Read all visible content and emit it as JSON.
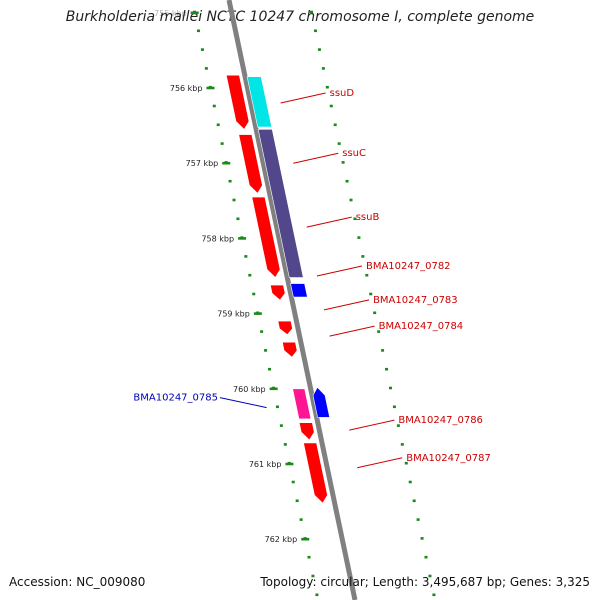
{
  "title": "Burkholderia mallei NCTC 10247 chromosome I, complete genome",
  "accession_text": "Accession: NC_009080",
  "topology_text": "Topology: circular; Length: 3,495,687 bp; Genes: 3,325",
  "colors": {
    "backbone": "#808080",
    "ticks": "#1a8a1a",
    "plus_label": "#cc0000",
    "minus_label": "#0000bb",
    "cds_red": "#ff0000",
    "cds_cyan": "#00e5e5",
    "cds_purple": "#52478a",
    "cds_blue": "#0000ff",
    "cds_pink": "#ff1493"
  },
  "scale_ticks": [
    "755 kbp",
    "756 kbp",
    "757 kbp",
    "758 kbp",
    "759 kbp",
    "760 kbp",
    "761 kbp",
    "762 kbp"
  ],
  "genes": [
    {
      "id": "g1",
      "strand": "inner",
      "start_kb": 755.83,
      "end_kb": 756.55,
      "color": "#ff0000",
      "label": ""
    },
    {
      "id": "g2",
      "strand": "mid",
      "start_kb": 755.85,
      "end_kb": 756.52,
      "color": "#00e5e5",
      "label": "ssuD"
    },
    {
      "id": "g3",
      "strand": "inner",
      "start_kb": 756.62,
      "end_kb": 757.4,
      "color": "#ff0000",
      "label": ""
    },
    {
      "id": "g4",
      "strand": "mid",
      "start_kb": 756.55,
      "end_kb": 758.52,
      "color": "#52478a",
      "label": "ssuC"
    },
    {
      "id": "g5",
      "strand": "inner",
      "start_kb": 757.45,
      "end_kb": 758.52,
      "color": "#ff0000",
      "label": ""
    },
    {
      "id": "g6",
      "strand": "inner",
      "start_kb": 758.62,
      "end_kb": 758.82,
      "color": "#ff0000",
      "label": ""
    },
    {
      "id": "g7",
      "strand": "mid",
      "start_kb": 758.6,
      "end_kb": 758.78,
      "color": "#0000ff",
      "label": ""
    },
    {
      "id": "g8",
      "strand": "inner",
      "start_kb": 759.1,
      "end_kb": 759.28,
      "color": "#ff0000",
      "label": ""
    },
    {
      "id": "g9",
      "strand": "inner",
      "start_kb": 759.38,
      "end_kb": 759.58,
      "color": "#ff0000",
      "label": ""
    },
    {
      "id": "g10",
      "strand": "left",
      "start_kb": 760.0,
      "end_kb": 760.4,
      "color": "#ff1493",
      "label": ""
    },
    {
      "id": "g11",
      "strand": "left2",
      "start_kb": 759.98,
      "end_kb": 760.38,
      "color": "#0000ff",
      "label": ""
    },
    {
      "id": "g12",
      "strand": "inner",
      "start_kb": 760.45,
      "end_kb": 760.68,
      "color": "#ff0000",
      "label": ""
    },
    {
      "id": "g13",
      "strand": "inner",
      "start_kb": 760.72,
      "end_kb": 761.52,
      "color": "#ff0000",
      "label": ""
    }
  ],
  "labels": [
    {
      "text": "ssuD",
      "side": "right",
      "kb": 756.2,
      "color": "#cc0000"
    },
    {
      "text": "ssuC",
      "side": "right",
      "kb": 757.0,
      "color": "#cc0000"
    },
    {
      "text": "ssuB",
      "side": "right",
      "kb": 757.85,
      "color": "#cc0000"
    },
    {
      "text": "BMA10247_0782",
      "side": "right",
      "kb": 758.5,
      "color": "#cc0000"
    },
    {
      "text": "BMA10247_0783",
      "side": "right",
      "kb": 758.95,
      "color": "#cc0000"
    },
    {
      "text": "BMA10247_0784",
      "side": "right",
      "kb": 759.3,
      "color": "#cc0000"
    },
    {
      "text": "BMA10247_0785",
      "side": "left",
      "kb": 760.25,
      "color": "#0000bb"
    },
    {
      "text": "BMA10247_0786",
      "side": "right",
      "kb": 760.55,
      "color": "#cc0000"
    },
    {
      "text": "BMA10247_0787",
      "side": "right",
      "kb": 761.05,
      "color": "#cc0000"
    }
  ]
}
